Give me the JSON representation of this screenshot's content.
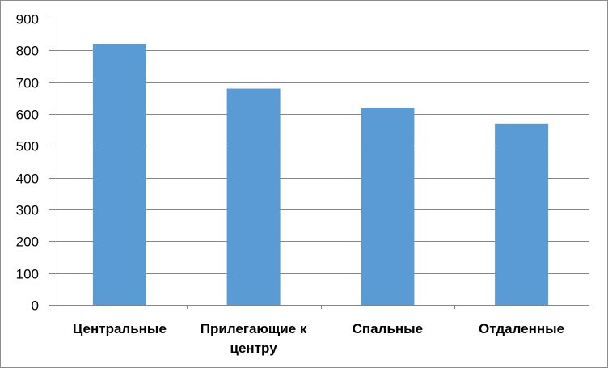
{
  "chart_data": {
    "type": "bar",
    "title": "",
    "xlabel": "",
    "ylabel": "",
    "categories": [
      [
        "Центральные"
      ],
      [
        "Прилегающие к",
        "центру"
      ],
      [
        "Спальные"
      ],
      [
        "Отдаленные"
      ]
    ],
    "values": [
      820,
      680,
      620,
      570
    ],
    "ylim": [
      0,
      900
    ],
    "yticks": [
      0,
      100,
      200,
      300,
      400,
      500,
      600,
      700,
      800,
      900
    ],
    "grid": true,
    "legend": "none",
    "colors": {
      "bar": "#5B9BD5",
      "grid": "#868686",
      "axis": "#868686"
    }
  }
}
